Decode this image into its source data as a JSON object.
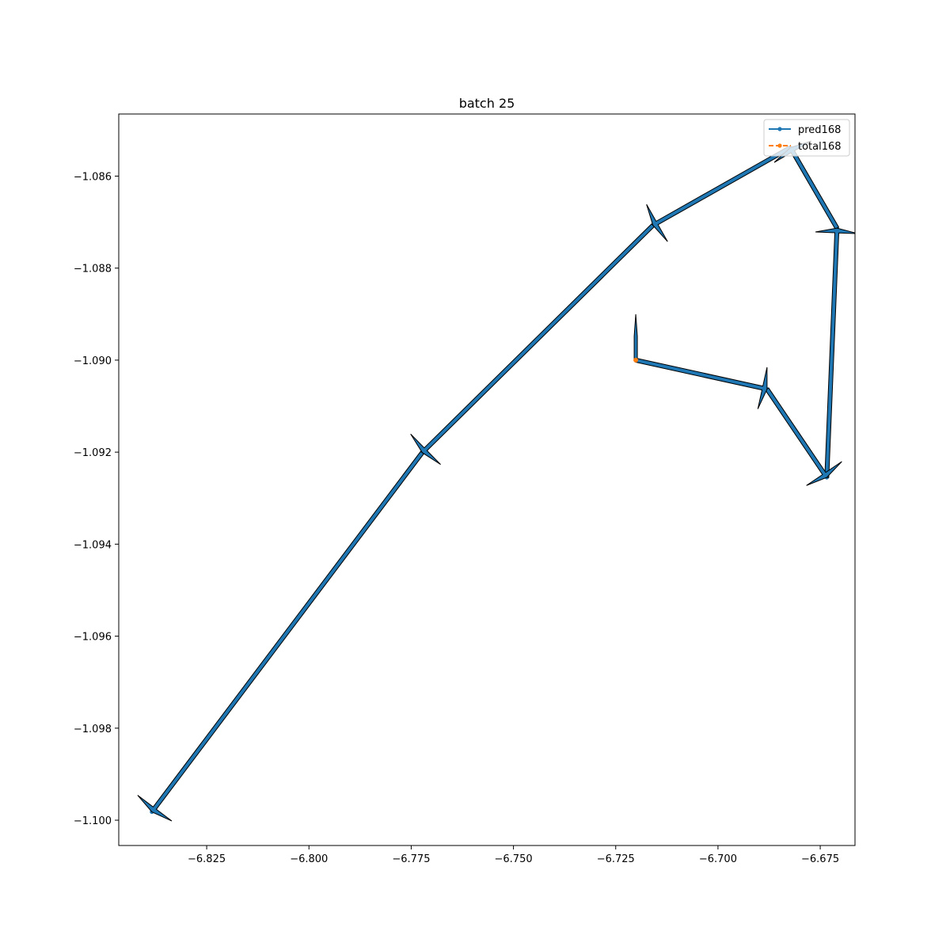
{
  "chart_data": {
    "type": "line",
    "title": "batch 25",
    "xlabel": "",
    "ylabel": "",
    "xlim": [
      -6.8465,
      -6.6665
    ],
    "ylim": [
      -1.10055,
      -1.08465
    ],
    "xticks": [
      -6.825,
      -6.8,
      -6.775,
      -6.75,
      -6.725,
      -6.7,
      -6.675
    ],
    "xtick_labels": [
      "−6.825",
      "−6.800",
      "−6.775",
      "−6.750",
      "−6.725",
      "−6.700",
      "−6.675"
    ],
    "yticks": [
      -1.1,
      -1.098,
      -1.096,
      -1.094,
      -1.092,
      -1.09,
      -1.088,
      -1.086
    ],
    "ytick_labels": [
      "−1.100",
      "−1.098",
      "−1.096",
      "−1.094",
      "−1.092",
      "−1.090",
      "−1.088",
      "−1.086"
    ],
    "grid": false,
    "legend_position": "top-right",
    "series": [
      {
        "name": "pred168",
        "color": "#1f77b4",
        "style": "solid",
        "marker": "dot",
        "x": [
          -6.8384,
          -6.7723,
          -6.7159,
          -6.6823,
          -6.6709,
          -6.6734,
          -6.688,
          -6.7201
        ],
        "y": [
          -1.09982,
          -1.09201,
          -1.08707,
          -1.08538,
          -1.08713,
          -1.09255,
          -1.09063,
          -1.09
        ]
      },
      {
        "name": "total168",
        "color": "#ff7f0e",
        "style": "dashed",
        "marker": "dot",
        "x": [
          -6.7201
        ],
        "y": [
          -1.09
        ]
      }
    ],
    "arrows": [
      {
        "x": -6.7723,
        "y": -1.09201,
        "dx": -0.0661,
        "dy": -0.00781
      },
      {
        "x": -6.7159,
        "y": -1.08707,
        "dx": -0.0564,
        "dy": -0.00494
      },
      {
        "x": -6.6823,
        "y": -1.08538,
        "dx": -0.0336,
        "dy": -0.00169
      },
      {
        "x": -6.6709,
        "y": -1.08713,
        "dx": -0.0114,
        "dy": 0.00175
      },
      {
        "x": -6.6734,
        "y": -1.09255,
        "dx": 0.0025,
        "dy": 0.00542
      },
      {
        "x": -6.688,
        "y": -1.09063,
        "dx": 0.0146,
        "dy": -0.00192
      },
      {
        "x": -6.7201,
        "y": -1.09,
        "dx": 0.0321,
        "dy": -0.00063
      },
      {
        "x": -6.7201,
        "y": -1.09,
        "dx": 0.0,
        "dy": 0.0
      }
    ]
  }
}
